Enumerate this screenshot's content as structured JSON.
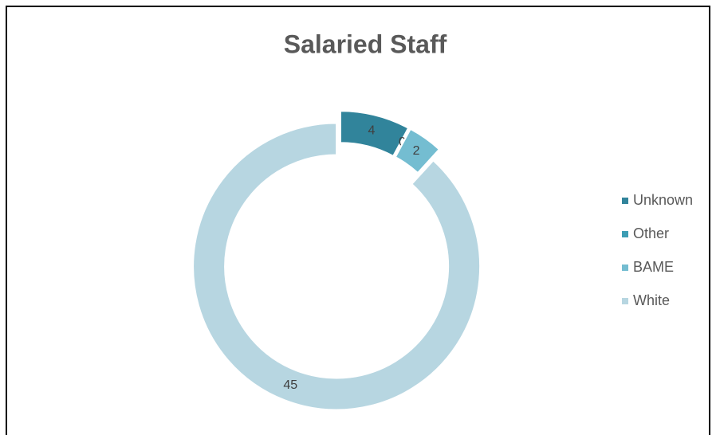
{
  "chart_data": {
    "type": "donut",
    "title": "Salaried Staff",
    "categories": [
      "Unknown",
      "Other",
      "BAME",
      "White"
    ],
    "values": [
      4,
      0,
      2,
      45
    ],
    "colors": [
      "#31849b",
      "#3d9db4",
      "#74bdd1",
      "#b7d6e1"
    ],
    "legend": "right"
  }
}
